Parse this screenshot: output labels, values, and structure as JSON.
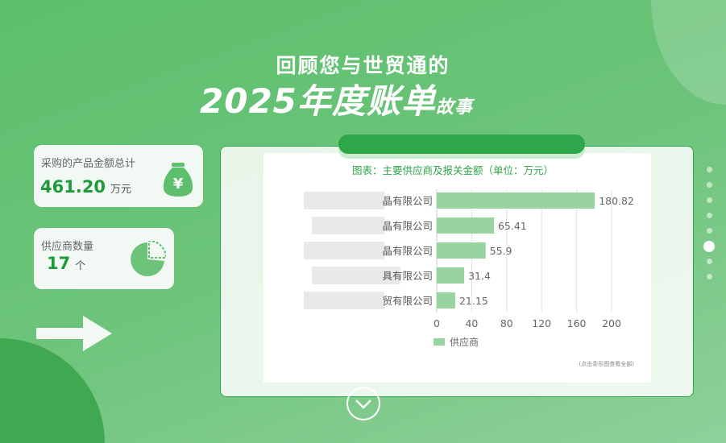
{
  "header": {
    "line1": "回顾您与世贸通的",
    "line2_main": "2025年度账单",
    "line2_small": "故事"
  },
  "stats": [
    {
      "label": "采购的产品金额总计",
      "value": "461.20",
      "unit": "万元",
      "icon": "money-bag-yen-icon"
    },
    {
      "label": "供应商数量",
      "value": "17",
      "unit": "个",
      "icon": "pie-chart-icon"
    }
  ],
  "chart_data": {
    "type": "bar",
    "orientation": "horizontal",
    "title": "图表：主要供应商及报关金额（单位：万元）",
    "categories": [
      "晶有限公司",
      "晶有限公司",
      "晶有限公司",
      "具有限公司",
      "贸有限公司"
    ],
    "series": [
      {
        "name": "供应商",
        "values": [
          180.82,
          65.41,
          55.9,
          31.4,
          21.15
        ],
        "color": "#98d4a0"
      }
    ],
    "xlim": [
      0,
      200
    ],
    "xticks": [
      0,
      40,
      80,
      120,
      160,
      200
    ],
    "grid": true,
    "legend": "bottom-left",
    "note": "(点击条形图查看全部)"
  },
  "pagination": {
    "total": 8,
    "active": 6
  },
  "colors": {
    "accent": "#2ea64a",
    "bar": "#98d4a0"
  }
}
